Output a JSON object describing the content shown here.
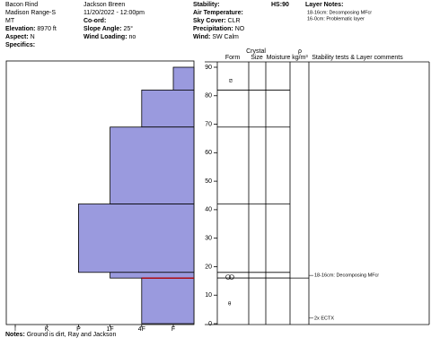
{
  "header": {
    "site": "Bacon Rind",
    "range": "Madison Range-S",
    "state": "MT",
    "elevation": {
      "label": "Elevation:",
      "value": "8970 ft"
    },
    "aspect": {
      "label": "Aspect:",
      "value": "N"
    },
    "specifics": {
      "label": "Specifics:"
    },
    "observer": "Jackson Breen",
    "datetime": "11/20/2022 - 12:00pm",
    "coord": {
      "label": "Co-ord:"
    },
    "slope": {
      "label": "Slope Angle:",
      "value": "25°"
    },
    "wind_loading": {
      "label": "Wind Loading:",
      "value": "no"
    },
    "stability": {
      "label": "Stability:"
    },
    "air_temp": {
      "label": "Air Temperature:"
    },
    "sky": {
      "label": "Sky Cover:",
      "value": "CLR"
    },
    "precip": {
      "label": "Precipitation:",
      "value": "NO"
    },
    "wind": {
      "label": "Wind:",
      "value": "SW Calm"
    },
    "hs": {
      "label": "HS:",
      "value": "90"
    },
    "layer_notes": {
      "title": "Layer Notes:",
      "notes": [
        "18-16cm: Decomposing MFcr",
        "16-0cm: Problematic layer"
      ]
    }
  },
  "table_headers": {
    "crystal": "Crystal",
    "form": "Form",
    "size": "Size",
    "moisture": "Moisture",
    "rho": "ρ",
    "density_unit": "kg/m³",
    "comments": "Stability tests & Layer comments"
  },
  "profile": {
    "height_ticks": [
      0,
      10,
      20,
      30,
      40,
      50,
      60,
      70,
      80,
      90
    ],
    "hardness_labels": [
      "I",
      "K",
      "P",
      "1F",
      "4F",
      "F"
    ],
    "layers": [
      {
        "top": 90,
        "bottom": 82,
        "hardness": "F"
      },
      {
        "top": 82,
        "bottom": 69,
        "hardness": "4F"
      },
      {
        "top": 69,
        "bottom": 42,
        "hardness": "1F"
      },
      {
        "top": 42,
        "bottom": 18,
        "hardness": "P"
      },
      {
        "top": 18,
        "bottom": 16,
        "hardness": "1F"
      },
      {
        "top": 16,
        "bottom": 0,
        "hardness": "4F"
      }
    ],
    "problem_layer": 16,
    "comments": [
      {
        "height": 16,
        "text": "18-16cm: Decomposing MFcr"
      },
      {
        "height": 1,
        "text": "2x ECTX"
      }
    ]
  },
  "footer": {
    "label": "Notes:",
    "value": "Ground is dirt, Ray and Jackson"
  }
}
